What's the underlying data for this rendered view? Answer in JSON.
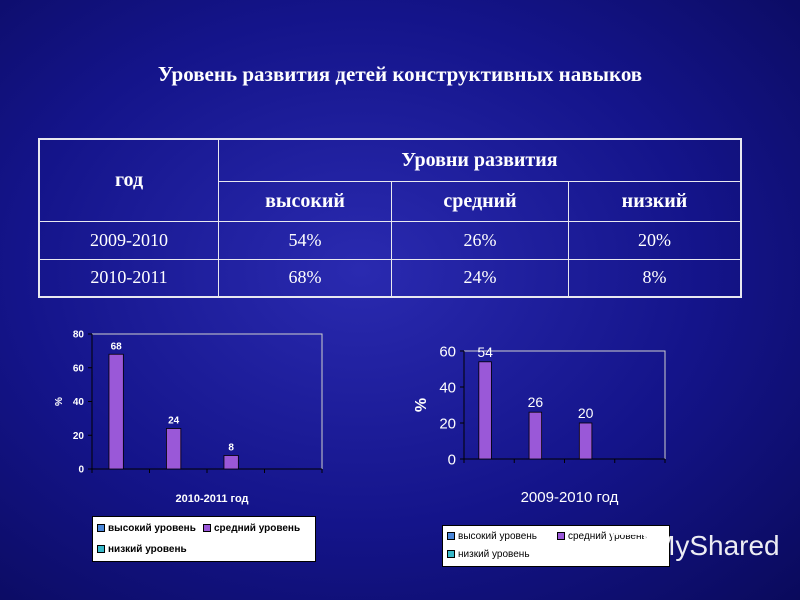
{
  "title": "Уровень развития детей конструктивных навыков",
  "table": {
    "col_year": "год",
    "col_levels": "Уровни развития",
    "sub_high": "высокий",
    "sub_mid": "средний",
    "sub_low": "низкий",
    "rows": [
      {
        "year": "2009-2010",
        "high": "54%",
        "mid": "26%",
        "low": "20%"
      },
      {
        "year": "2010-2011",
        "high": "68%",
        "mid": "24%",
        "low": "8%"
      }
    ]
  },
  "chart_data": [
    {
      "type": "bar",
      "title": "",
      "xlabel": "2010-2011 год",
      "ylabel": "%",
      "ylim": [
        0,
        80
      ],
      "yticks": [
        0,
        20,
        40,
        60,
        80
      ],
      "categories": [
        "высокий уровень",
        "средний уровень",
        "низкий уровень"
      ],
      "values": [
        68,
        24,
        8
      ],
      "data_labels": [
        "68",
        "24",
        "8"
      ],
      "legend": [
        "высокий уровень",
        "средний уровень",
        "низкий уровень"
      ],
      "legend_placement": "bottom",
      "grid": false,
      "bar_color": "#9a58d8"
    },
    {
      "type": "bar",
      "title": "",
      "xlabel": "2009-2010 год",
      "ylabel": "%",
      "ylim": [
        0,
        60
      ],
      "yticks": [
        0,
        20,
        40,
        60
      ],
      "categories": [
        "высокий уровень",
        "средний уровень",
        "низкий уровень"
      ],
      "values": [
        54,
        26,
        20
      ],
      "data_labels": [
        "54",
        "26",
        "20"
      ],
      "legend": [
        "высокий уровень",
        "средний уровень",
        "низкий уровень"
      ],
      "legend_placement": "bottom",
      "grid": false,
      "bar_color": "#9a58d8"
    }
  ],
  "legend_colors": [
    "#4a86d8",
    "#9a58d8",
    "#38b8c8"
  ],
  "watermark": "MyShared"
}
